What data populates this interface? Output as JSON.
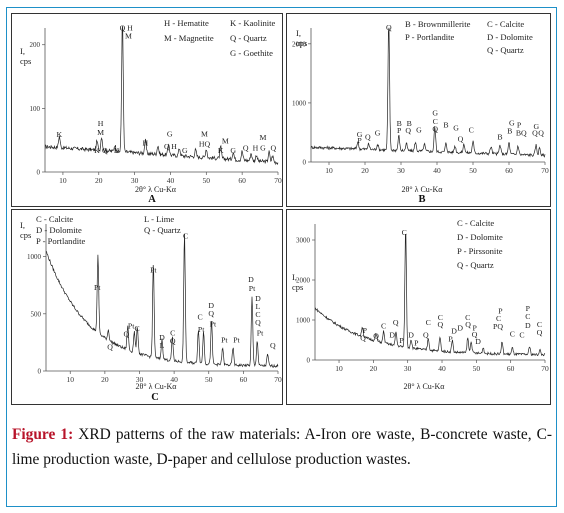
{
  "caption": {
    "label": "Figure 1:",
    "text": "XRD patterns of the raw materials: A-Iron ore waste, B-concrete waste, C-lime production waste, D-paper and cellulose production wastes."
  },
  "chart_data": [
    {
      "type": "line",
      "panel_label": "A",
      "ylabel_lines": [
        "I,",
        "cps"
      ],
      "xlabel": "2θ° λ Cu-Kα",
      "xlim": [
        5,
        70
      ],
      "ylim": [
        0,
        220
      ],
      "xticks": [
        10,
        20,
        30,
        40,
        50,
        60,
        70
      ],
      "yticks": [
        0,
        100,
        200
      ],
      "legend": [
        {
          "text": "H - Hematite"
        },
        {
          "text": "K - Kaolinite"
        },
        {
          "text": "M - Magnetite"
        },
        {
          "text": "Q - Quartz"
        },
        {
          "text": "G - Goethite"
        }
      ],
      "baseline": {
        "y0": 40,
        "y1": 15,
        "noise": 3
      },
      "peaks": [
        {
          "x": 9,
          "h": 18
        },
        {
          "x": 19.5,
          "h": 14
        },
        {
          "x": 20.8,
          "h": 22
        },
        {
          "x": 24.5,
          "h": 10
        },
        {
          "x": 26.6,
          "h": 210
        },
        {
          "x": 33,
          "h": 20
        },
        {
          "x": 36.5,
          "h": 14
        },
        {
          "x": 39.5,
          "h": 18
        },
        {
          "x": 42.5,
          "h": 12
        },
        {
          "x": 47,
          "h": 11
        },
        {
          "x": 50,
          "h": 14
        },
        {
          "x": 54,
          "h": 18
        },
        {
          "x": 57.5,
          "h": 12
        },
        {
          "x": 60,
          "h": 14
        },
        {
          "x": 62.5,
          "h": 12
        },
        {
          "x": 64,
          "h": 10
        },
        {
          "x": 67.5,
          "h": 16
        },
        {
          "x": 68.5,
          "h": 10
        }
      ],
      "annotations": [
        {
          "x": 26.6,
          "y": 222,
          "text": "Q"
        },
        {
          "x": 28.7,
          "y": 222,
          "text": "H"
        },
        {
          "x": 28.3,
          "y": 210,
          "text": "M"
        },
        {
          "x": 9,
          "y": 55,
          "text": "K"
        },
        {
          "x": 20.5,
          "y": 72,
          "text": "H"
        },
        {
          "x": 20.5,
          "y": 58,
          "text": "M"
        },
        {
          "x": 19.5,
          "y": 30,
          "text": "K"
        },
        {
          "x": 21.7,
          "y": 30,
          "text": "Q"
        },
        {
          "x": 25,
          "y": 30,
          "text": "K"
        },
        {
          "x": 33,
          "y": 42,
          "text": "H"
        },
        {
          "x": 39.8,
          "y": 56,
          "text": "G"
        },
        {
          "x": 39,
          "y": 36,
          "text": "Q"
        },
        {
          "x": 41,
          "y": 36,
          "text": "H"
        },
        {
          "x": 44,
          "y": 30,
          "text": "G"
        },
        {
          "x": 49.5,
          "y": 56,
          "text": "M"
        },
        {
          "x": 49.5,
          "y": 40,
          "text": "HQ"
        },
        {
          "x": 55.3,
          "y": 45,
          "text": "M"
        },
        {
          "x": 54,
          "y": 30,
          "text": "K"
        },
        {
          "x": 57.5,
          "y": 30,
          "text": "G"
        },
        {
          "x": 61,
          "y": 34,
          "text": "Q"
        },
        {
          "x": 63.7,
          "y": 34,
          "text": "H"
        },
        {
          "x": 65.8,
          "y": 50,
          "text": "M"
        },
        {
          "x": 65.8,
          "y": 34,
          "text": "G"
        },
        {
          "x": 68.7,
          "y": 34,
          "text": "Q"
        }
      ]
    },
    {
      "type": "line",
      "panel_label": "B",
      "ylabel_lines": [
        "I,",
        "cps"
      ],
      "xlabel": "2θ° λ Cu-Kα",
      "xlim": [
        5,
        70
      ],
      "ylim": [
        0,
        2200
      ],
      "xticks": [
        10,
        20,
        30,
        40,
        50,
        60,
        70
      ],
      "yticks": [
        0,
        1000,
        2000
      ],
      "legend": [
        {
          "text": "B - Brownmillerite"
        },
        {
          "text": "C - Calcite"
        },
        {
          "text": "P - Portlandite"
        },
        {
          "text": "D - Dolomite"
        },
        {
          "text": "Q - Quartz"
        }
      ],
      "baseline": {
        "y0": 250,
        "y1": 110,
        "noise": 25
      },
      "peaks": [
        {
          "x": 18,
          "h": 120
        },
        {
          "x": 21,
          "h": 90
        },
        {
          "x": 23.5,
          "h": 90
        },
        {
          "x": 26.6,
          "h": 2150
        },
        {
          "x": 29.4,
          "h": 250
        },
        {
          "x": 31.5,
          "h": 120
        },
        {
          "x": 34,
          "h": 150
        },
        {
          "x": 36.5,
          "h": 120
        },
        {
          "x": 39.4,
          "h": 420
        },
        {
          "x": 42.5,
          "h": 150
        },
        {
          "x": 45,
          "h": 110
        },
        {
          "x": 47.5,
          "h": 150
        },
        {
          "x": 50,
          "h": 200
        },
        {
          "x": 55,
          "h": 120
        },
        {
          "x": 57.5,
          "h": 150
        },
        {
          "x": 60,
          "h": 200
        },
        {
          "x": 62.5,
          "h": 150
        },
        {
          "x": 67.5,
          "h": 170
        },
        {
          "x": 68.5,
          "h": 130
        }
      ],
      "annotations": [
        {
          "x": 26.6,
          "y": 2300,
          "text": "Q"
        },
        {
          "x": 18.5,
          "y": 420,
          "text": "G"
        },
        {
          "x": 18.5,
          "y": 320,
          "text": "P"
        },
        {
          "x": 20.8,
          "y": 380,
          "text": "Q"
        },
        {
          "x": 23.5,
          "y": 450,
          "text": "G"
        },
        {
          "x": 29.5,
          "y": 610,
          "text": "B"
        },
        {
          "x": 29.5,
          "y": 490,
          "text": "P"
        },
        {
          "x": 32.3,
          "y": 610,
          "text": "B"
        },
        {
          "x": 32,
          "y": 490,
          "text": "Q"
        },
        {
          "x": 35,
          "y": 500,
          "text": "G"
        },
        {
          "x": 39.5,
          "y": 790,
          "text": "G"
        },
        {
          "x": 39.5,
          "y": 640,
          "text": "C"
        },
        {
          "x": 39.5,
          "y": 520,
          "text": "Q"
        },
        {
          "x": 42.5,
          "y": 580,
          "text": "B"
        },
        {
          "x": 45.3,
          "y": 530,
          "text": "G"
        },
        {
          "x": 46.5,
          "y": 350,
          "text": "Q"
        },
        {
          "x": 49.5,
          "y": 500,
          "text": "C"
        },
        {
          "x": 57.5,
          "y": 380,
          "text": "B"
        },
        {
          "x": 60.8,
          "y": 620,
          "text": "G"
        },
        {
          "x": 60.2,
          "y": 480,
          "text": "B"
        },
        {
          "x": 62.8,
          "y": 580,
          "text": "P"
        },
        {
          "x": 63.4,
          "y": 450,
          "text": "BQ"
        },
        {
          "x": 67.6,
          "y": 560,
          "text": "G"
        },
        {
          "x": 67.2,
          "y": 450,
          "text": "Q"
        },
        {
          "x": 68.9,
          "y": 450,
          "text": "Q"
        }
      ]
    },
    {
      "type": "line",
      "panel_label": "C",
      "ylabel_lines": [
        "I,",
        "cps"
      ],
      "xlabel": "2θ° λ Cu-Kα",
      "xlim": [
        3,
        70
      ],
      "ylim": [
        0,
        1250
      ],
      "xticks": [
        10,
        20,
        30,
        40,
        50,
        60,
        70
      ],
      "yticks": [
        0,
        500,
        1000
      ],
      "legend": [
        {
          "text": "C - Calcite"
        },
        {
          "text": "L - Lime"
        },
        {
          "text": "D - Dolomite"
        },
        {
          "text": "Q - Quartz"
        },
        {
          "text": "P - Portlandite"
        }
      ],
      "baseline": {
        "y0": 1050,
        "y1": 40,
        "noise": 12,
        "decay": 5.5
      },
      "peaks": [
        {
          "x": 18,
          "h": 680
        },
        {
          "x": 21,
          "h": 90
        },
        {
          "x": 26.6,
          "h": 210
        },
        {
          "x": 28.5,
          "h": 180
        },
        {
          "x": 29.4,
          "h": 230
        },
        {
          "x": 34,
          "h": 830
        },
        {
          "x": 36.5,
          "h": 170
        },
        {
          "x": 39.5,
          "h": 200
        },
        {
          "x": 43,
          "h": 1130
        },
        {
          "x": 47,
          "h": 300
        },
        {
          "x": 48.5,
          "h": 280
        },
        {
          "x": 50.8,
          "h": 380
        },
        {
          "x": 54,
          "h": 150
        },
        {
          "x": 57,
          "h": 150
        },
        {
          "x": 62.5,
          "h": 600
        },
        {
          "x": 64,
          "h": 220
        },
        {
          "x": 67,
          "h": 100
        }
      ],
      "annotations": [
        {
          "x": 17.8,
          "y": 710,
          "text": "Pt"
        },
        {
          "x": 21.5,
          "y": 190,
          "text": "Q"
        },
        {
          "x": 26.2,
          "y": 300,
          "text": "Q"
        },
        {
          "x": 27.6,
          "y": 370,
          "text": "Pt"
        },
        {
          "x": 29.3,
          "y": 350,
          "text": "C"
        },
        {
          "x": 34,
          "y": 860,
          "text": "Pt"
        },
        {
          "x": 36.5,
          "y": 270,
          "text": "D"
        },
        {
          "x": 36.5,
          "y": 200,
          "text": "L"
        },
        {
          "x": 39.6,
          "y": 310,
          "text": "C"
        },
        {
          "x": 39.6,
          "y": 240,
          "text": "Q"
        },
        {
          "x": 43.3,
          "y": 1160,
          "text": "C"
        },
        {
          "x": 47.5,
          "y": 450,
          "text": "C"
        },
        {
          "x": 47.8,
          "y": 340,
          "text": "Pt"
        },
        {
          "x": 50.7,
          "y": 550,
          "text": "D"
        },
        {
          "x": 50.7,
          "y": 480,
          "text": "Q"
        },
        {
          "x": 51.2,
          "y": 390,
          "text": "Pt"
        },
        {
          "x": 54.5,
          "y": 250,
          "text": "Pt"
        },
        {
          "x": 58,
          "y": 250,
          "text": "Pt"
        },
        {
          "x": 62.2,
          "y": 780,
          "text": "D"
        },
        {
          "x": 62.5,
          "y": 700,
          "text": "Pt"
        },
        {
          "x": 64.2,
          "y": 610,
          "text": "D"
        },
        {
          "x": 64.2,
          "y": 540,
          "text": "L"
        },
        {
          "x": 64.2,
          "y": 470,
          "text": "C"
        },
        {
          "x": 64.2,
          "y": 400,
          "text": "Q"
        },
        {
          "x": 64.8,
          "y": 310,
          "text": "Pt"
        },
        {
          "x": 68.5,
          "y": 200,
          "text": "Q"
        }
      ]
    },
    {
      "type": "line",
      "panel_label": "",
      "ylabel_lines": [
        "I,",
        "cps"
      ],
      "xlabel": "2θ° λ Cu-Kα",
      "xlim": [
        3,
        70
      ],
      "ylim": [
        0,
        3300
      ],
      "xticks": [
        10,
        20,
        30,
        40,
        50,
        60,
        70
      ],
      "yticks": [
        0,
        1000,
        2000,
        3000
      ],
      "legend": [
        {
          "text": "C - Calcite"
        },
        {
          "text": "D - Dolomite"
        },
        {
          "text": "P - Pirssonite"
        },
        {
          "text": "Q - Quartz"
        }
      ],
      "baseline": {
        "y0": 1300,
        "y1": 120,
        "noise": 30,
        "decay": 4.5
      },
      "peaks": [
        {
          "x": 16.8,
          "h": 250
        },
        {
          "x": 20.8,
          "h": 180
        },
        {
          "x": 23,
          "h": 300
        },
        {
          "x": 26.6,
          "h": 350
        },
        {
          "x": 29.4,
          "h": 3000
        },
        {
          "x": 31,
          "h": 220
        },
        {
          "x": 36,
          "h": 300
        },
        {
          "x": 39.4,
          "h": 350
        },
        {
          "x": 43,
          "h": 300
        },
        {
          "x": 47.5,
          "h": 380
        },
        {
          "x": 48.5,
          "h": 300
        },
        {
          "x": 52,
          "h": 150
        },
        {
          "x": 57.5,
          "h": 300
        },
        {
          "x": 60.5,
          "h": 160
        },
        {
          "x": 65.5,
          "h": 200
        },
        {
          "x": 68.5,
          "h": 120
        }
      ],
      "annotations": [
        {
          "x": 29,
          "y": 3120,
          "text": "C"
        },
        {
          "x": 17.5,
          "y": 680,
          "text": "P"
        },
        {
          "x": 17,
          "y": 490,
          "text": "Q"
        },
        {
          "x": 20.8,
          "y": 540,
          "text": "Q"
        },
        {
          "x": 23,
          "y": 790,
          "text": "C"
        },
        {
          "x": 25.5,
          "y": 560,
          "text": "D"
        },
        {
          "x": 26.5,
          "y": 880,
          "text": "Q"
        },
        {
          "x": 28.2,
          "y": 430,
          "text": "P"
        },
        {
          "x": 31,
          "y": 560,
          "text": "D"
        },
        {
          "x": 32.5,
          "y": 360,
          "text": "P"
        },
        {
          "x": 36,
          "y": 880,
          "text": "C"
        },
        {
          "x": 35.3,
          "y": 560,
          "text": "Q"
        },
        {
          "x": 39.5,
          "y": 1000,
          "text": "C"
        },
        {
          "x": 39.5,
          "y": 820,
          "text": "Q"
        },
        {
          "x": 43.5,
          "y": 660,
          "text": "D"
        },
        {
          "x": 42.5,
          "y": 460,
          "text": "P"
        },
        {
          "x": 45.3,
          "y": 740,
          "text": "D"
        },
        {
          "x": 47.5,
          "y": 1000,
          "text": "C"
        },
        {
          "x": 47.6,
          "y": 820,
          "text": "Q"
        },
        {
          "x": 49.5,
          "y": 740,
          "text": "P"
        },
        {
          "x": 49.5,
          "y": 570,
          "text": "Q"
        },
        {
          "x": 50.5,
          "y": 400,
          "text": "D"
        },
        {
          "x": 57,
          "y": 1160,
          "text": "P"
        },
        {
          "x": 56.5,
          "y": 980,
          "text": "C"
        },
        {
          "x": 56.3,
          "y": 780,
          "text": "PQ"
        },
        {
          "x": 60.5,
          "y": 590,
          "text": "C"
        },
        {
          "x": 65,
          "y": 1220,
          "text": "P"
        },
        {
          "x": 65,
          "y": 1030,
          "text": "C"
        },
        {
          "x": 65,
          "y": 800,
          "text": "D"
        },
        {
          "x": 63.3,
          "y": 560,
          "text": "C"
        },
        {
          "x": 68.4,
          "y": 830,
          "text": "C"
        },
        {
          "x": 68.4,
          "y": 620,
          "text": "Q"
        }
      ]
    }
  ]
}
